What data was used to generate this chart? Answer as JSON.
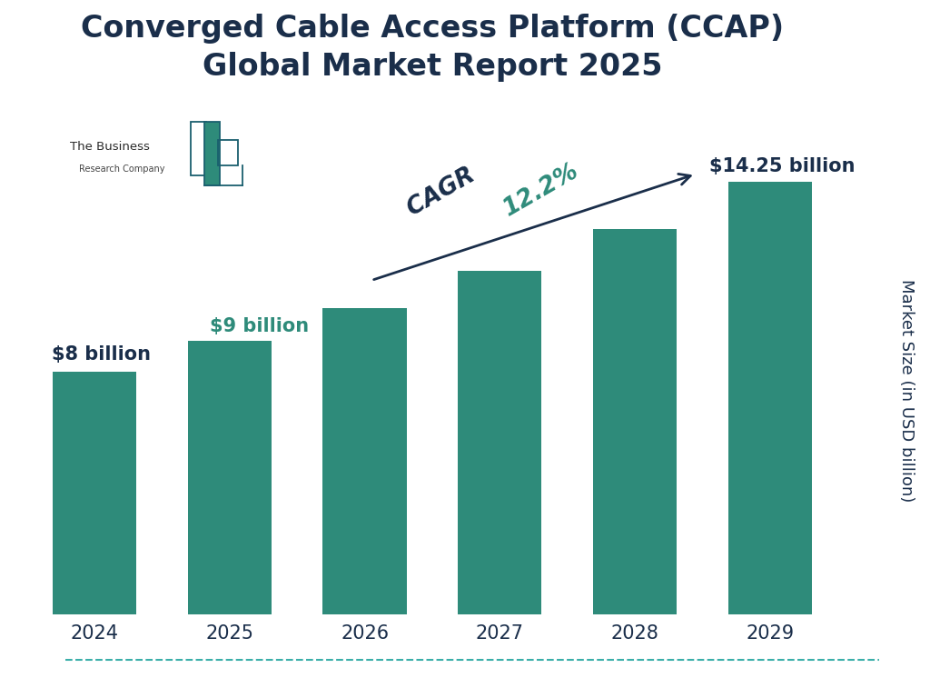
{
  "title": "Converged Cable Access Platform (CCAP)\nGlobal Market Report 2025",
  "years": [
    "2024",
    "2025",
    "2026",
    "2027",
    "2028",
    "2029"
  ],
  "values": [
    8.0,
    9.0,
    10.1,
    11.3,
    12.7,
    14.25
  ],
  "bar_color": "#2e8b7a",
  "background_color": "#ffffff",
  "title_color": "#1a2e4a",
  "ylabel": "Market Size (in USD billion)",
  "ylabel_color": "#1a2e4a",
  "ann_2024_label": "$8 billion",
  "ann_2024_color": "#1a2e4a",
  "ann_2025_label": "$9 billion",
  "ann_2025_color": "#2e8b7a",
  "ann_2029_label": "$14.25 billion",
  "ann_2029_color": "#1a2e4a",
  "cagr_text_dark": "CAGR ",
  "cagr_text_teal": "12.2%",
  "cagr_dark_color": "#1a2e4a",
  "cagr_teal_color": "#2e8b7a",
  "arrow_color": "#1a2e4a",
  "border_color": "#3aafa9",
  "building_outline_color": "#1a5f6e",
  "building_filled_color": "#2e8b7a",
  "title_fontsize": 24,
  "tick_fontsize": 15,
  "ylabel_fontsize": 13,
  "annotation_fontsize": 15,
  "cagr_fontsize": 19,
  "logo_text1": "The Business",
  "logo_text2": "Research Company",
  "ylim_max": 17.0
}
